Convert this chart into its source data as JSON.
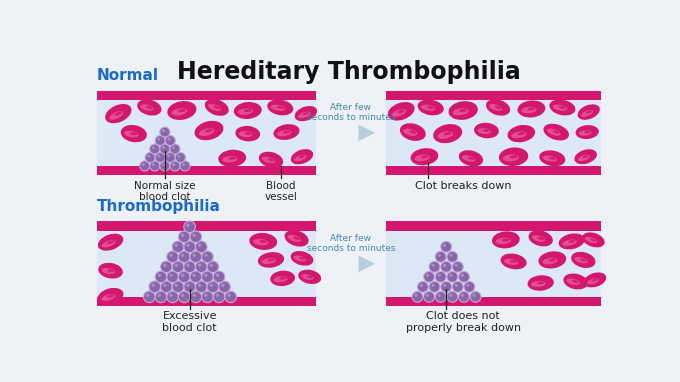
{
  "title": "Hereditary Thrombophilia",
  "title_fontsize": 17,
  "title_color": "#111111",
  "bg_color": "#eef2f7",
  "vessel_bg": "#dce8f5",
  "vessel_wall_color": "#d4176e",
  "rbc_color": "#d4176e",
  "rbc_highlight": "#f07ab0",
  "rbc_inner": "#b01060",
  "clot_color": "#8866aa",
  "clot_highlight": "#c4a8d8",
  "clot_edge": "#6644aa",
  "arrow_color": "#b8cfe0",
  "arrow_text_color": "#4488aa",
  "label_color": "#1a6acc",
  "annot_color": "#222222",
  "label_normal": "Normal",
  "label_thrombophilia": "Thrombophilia",
  "arrow_text": "After few\nseconds to minutes",
  "labels": {
    "normal_clot": "Normal size\nblood clot",
    "blood_vessel": "Blood\nvessel",
    "clot_breaks": "Clot breaks down",
    "excessive_clot": "Excessive\nblood clot",
    "clot_no_break": "Clot does not\nproperly break down"
  }
}
